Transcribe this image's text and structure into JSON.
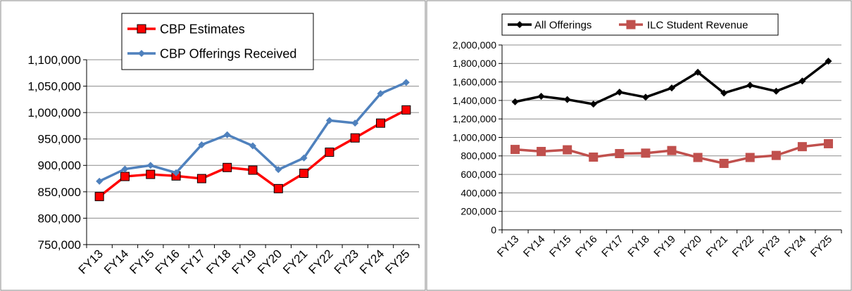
{
  "chart_data": [
    {
      "type": "line",
      "title": "",
      "xlabel": "",
      "ylabel": "",
      "categories": [
        "FY13",
        "FY14",
        "FY15",
        "FY16",
        "FY17",
        "FY18",
        "FY19",
        "FY20",
        "FY21",
        "FY22",
        "FY23",
        "FY24",
        "FY25"
      ],
      "ylim": [
        750000,
        1100000
      ],
      "yticks": [
        "750,000",
        "800,000",
        "850,000",
        "900,000",
        "950,000",
        "1,000,000",
        "1,050,000",
        "1,100,000"
      ],
      "grid": true,
      "legend": "top-center",
      "series": [
        {
          "name": "CBP Estimates",
          "color": "#ff0000",
          "marker": "square",
          "values": [
            841000,
            879000,
            883000,
            880000,
            875000,
            896000,
            891000,
            856000,
            885000,
            925000,
            952000,
            980000,
            1005000
          ]
        },
        {
          "name": "CBP Offerings Received",
          "color": "#4f81bd",
          "marker": "diamond",
          "values": [
            870000,
            893000,
            900000,
            886000,
            939000,
            958000,
            937000,
            892000,
            914000,
            985000,
            980000,
            1036000,
            1057000
          ]
        }
      ]
    },
    {
      "type": "line",
      "title": "",
      "xlabel": "",
      "ylabel": "",
      "categories": [
        "FY13",
        "FY14",
        "FY15",
        "FY16",
        "FY17",
        "FY18",
        "FY19",
        "FY20",
        "FY21",
        "FY22",
        "FY23",
        "FY24",
        "FY25"
      ],
      "ylim": [
        0,
        2000000
      ],
      "yticks": [
        "0",
        "200,000",
        "400,000",
        "600,000",
        "800,000",
        "1,000,000",
        "1,200,000",
        "1,400,000",
        "1,600,000",
        "1,800,000",
        "2,000,000"
      ],
      "grid": true,
      "legend": "top-center",
      "series": [
        {
          "name": "All Offerings",
          "color": "#000000",
          "marker": "diamond",
          "values": [
            1385000,
            1445000,
            1410000,
            1360000,
            1490000,
            1435000,
            1535000,
            1705000,
            1480000,
            1565000,
            1500000,
            1610000,
            1825000
          ]
        },
        {
          "name": "ILC Student Revenue",
          "color": "#c0504d",
          "marker": "square",
          "values": [
            870000,
            848000,
            866000,
            787000,
            825000,
            830000,
            858000,
            783000,
            719000,
            783000,
            805000,
            900000,
            932000
          ]
        }
      ]
    }
  ]
}
